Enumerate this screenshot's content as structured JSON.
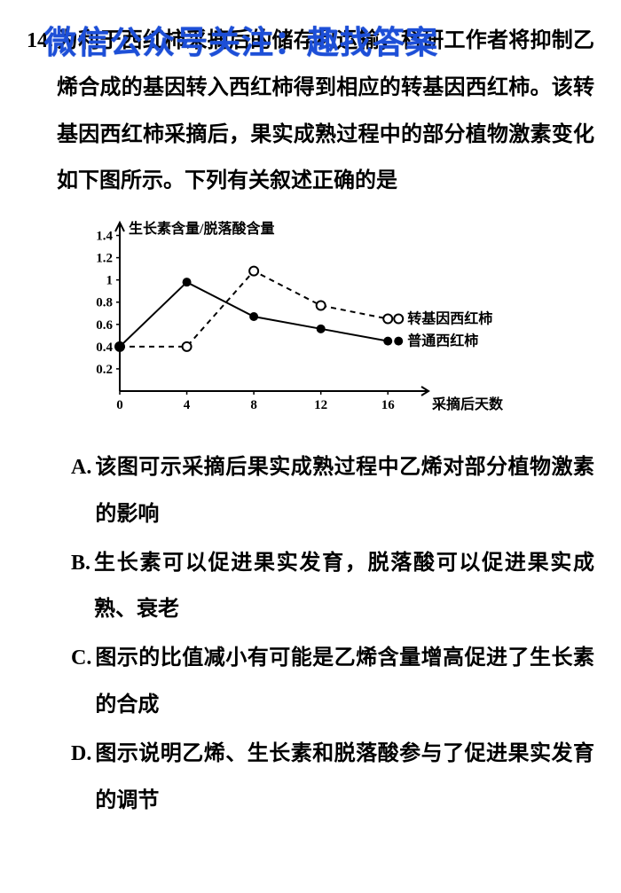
{
  "watermark": "微信公众号关注：趣找答案",
  "question_number": "14.",
  "stem": "为利于西红柿采摘后的储存和运输，科研工作者将抑制乙烯合成的基因转入西红柿得到相应的转基因西红柿。该转基因西红柿采摘后，果实成熟过程中的部分植物激素变化如下图所示。下列有关叙述正确的是",
  "chart": {
    "type": "line",
    "y_label": "生长素含量/脱落酸含量",
    "x_label": "采摘后天数",
    "y_ticks": [
      "0.2",
      "0.4",
      "0.6",
      "0.8",
      "1",
      "1.2",
      "1.4"
    ],
    "y_tick_values": [
      0.2,
      0.4,
      0.6,
      0.8,
      1.0,
      1.2,
      1.4
    ],
    "x_ticks": [
      "0",
      "4",
      "8",
      "12",
      "16"
    ],
    "x_tick_values": [
      0,
      4,
      8,
      12,
      16
    ],
    "xlim": [
      0,
      18
    ],
    "ylim": [
      0,
      1.5
    ],
    "series": [
      {
        "name": "transgenic",
        "label": "转基因西红柿",
        "marker": "open-circle",
        "line_style": "dashed",
        "color": "#000000",
        "points": [
          [
            0,
            0.4
          ],
          [
            4,
            0.4
          ],
          [
            8,
            1.08
          ],
          [
            12,
            0.77
          ],
          [
            16,
            0.65
          ]
        ]
      },
      {
        "name": "normal",
        "label": "普通西红柿",
        "marker": "filled-circle",
        "line_style": "solid",
        "color": "#000000",
        "points": [
          [
            0,
            0.4
          ],
          [
            4,
            0.98
          ],
          [
            8,
            0.67
          ],
          [
            12,
            0.56
          ],
          [
            16,
            0.45
          ]
        ]
      }
    ],
    "line_width": 2,
    "marker_size": 5,
    "axis_color": "#000000",
    "tick_fontsize": 15,
    "label_fontsize": 16
  },
  "options": [
    {
      "letter": "A.",
      "text": "该图可示采摘后果实成熟过程中乙烯对部分植物激素的影响"
    },
    {
      "letter": "B.",
      "text": "生长素可以促进果实发育，脱落酸可以促进果实成熟、衰老"
    },
    {
      "letter": "C.",
      "text": "图示的比值减小有可能是乙烯含量增高促进了生长素的合成"
    },
    {
      "letter": "D.",
      "text": "图示说明乙烯、生长素和脱落酸参与了促进果实发育的调节"
    }
  ]
}
